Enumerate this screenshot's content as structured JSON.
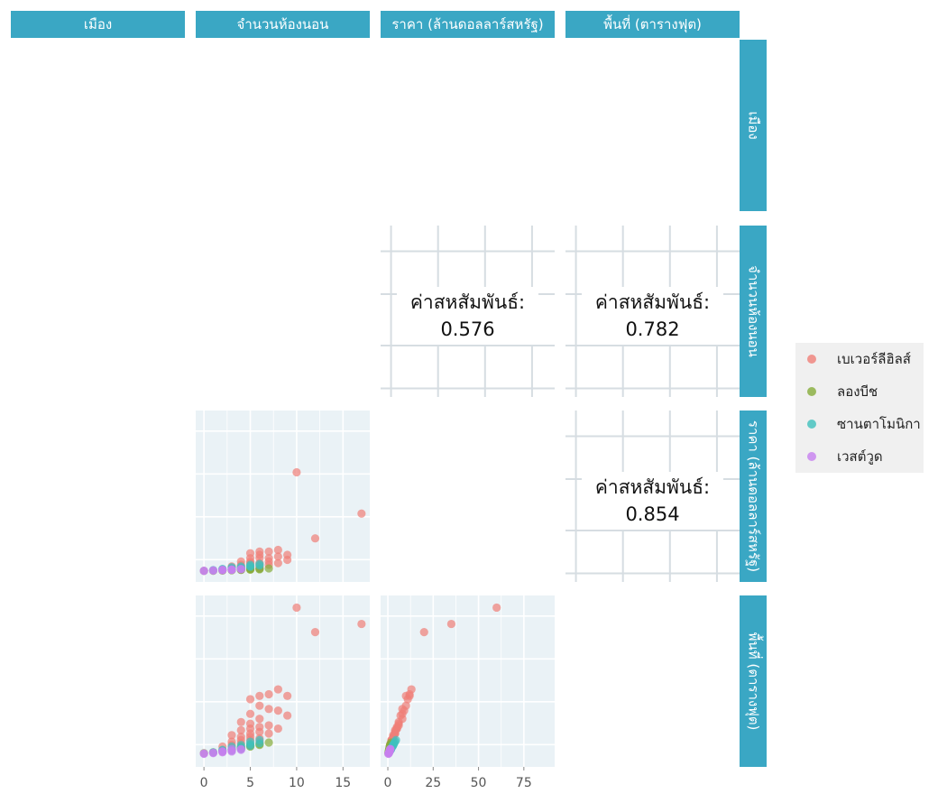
{
  "chart_data": {
    "type": "scatter",
    "variables": [
      "เมือง",
      "จำนวนห้องนอน",
      "ราคา (ล้านดอลลาร์สหรัฐ)",
      "พื้นที่ (ตารางฟุต)"
    ],
    "strip_color": "#3aa7c4",
    "panel_bg": "#eaf2f6",
    "correlation_label": "ค่าสหสัมพันธ์:",
    "correlations": [
      {
        "row": "จำนวนห้องนอน",
        "col": "ราคา (ล้านดอลลาร์สหรัฐ)",
        "value": "0.576"
      },
      {
        "row": "จำนวนห้องนอน",
        "col": "พื้นที่ (ตารางฟุต)",
        "value": "0.782"
      },
      {
        "row": "ราคา (ล้านดอลลาร์สหรัฐ)",
        "col": "พื้นที่ (ตารางฟุต)",
        "value": "0.854"
      }
    ],
    "x_axes": {
      "bedrooms": {
        "ticks": [
          0,
          5,
          10,
          15
        ],
        "range": [
          -0.5,
          17.5
        ]
      },
      "price": {
        "ticks": [
          0,
          25,
          50,
          75
        ],
        "range": [
          -2,
          90
        ]
      }
    },
    "legend": {
      "position": "right"
    },
    "series": [
      {
        "name": "เบเวอร์ลีฮิลส์",
        "color": "#f07f78",
        "points": [
          {
            "bed": 10,
            "price": 60,
            "area": 90
          },
          {
            "bed": 17,
            "price": 35,
            "area": 80
          },
          {
            "bed": 12,
            "price": 20,
            "area": 75
          },
          {
            "bed": 8,
            "price": 13,
            "area": 40
          },
          {
            "bed": 7,
            "price": 12,
            "area": 37
          },
          {
            "bed": 9,
            "price": 10,
            "area": 36
          },
          {
            "bed": 6,
            "price": 12,
            "area": 36
          },
          {
            "bed": 5,
            "price": 11,
            "area": 34
          },
          {
            "bed": 6,
            "price": 10,
            "area": 30
          },
          {
            "bed": 7,
            "price": 8,
            "area": 28
          },
          {
            "bed": 8,
            "price": 9,
            "area": 27
          },
          {
            "bed": 5,
            "price": 8,
            "area": 25
          },
          {
            "bed": 9,
            "price": 7,
            "area": 24
          },
          {
            "bed": 6,
            "price": 8,
            "area": 22
          },
          {
            "bed": 4,
            "price": 6,
            "area": 20
          },
          {
            "bed": 5,
            "price": 6,
            "area": 19
          },
          {
            "bed": 7,
            "price": 6,
            "area": 18
          },
          {
            "bed": 6,
            "price": 5,
            "area": 17
          },
          {
            "bed": 5,
            "price": 5,
            "area": 16
          },
          {
            "bed": 8,
            "price": 5,
            "area": 16
          },
          {
            "bed": 4,
            "price": 4,
            "area": 15
          },
          {
            "bed": 6,
            "price": 4,
            "area": 14
          },
          {
            "bed": 5,
            "price": 4,
            "area": 13
          },
          {
            "bed": 7,
            "price": 4,
            "area": 13
          },
          {
            "bed": 3,
            "price": 3,
            "area": 12
          },
          {
            "bed": 4,
            "price": 3,
            "area": 11
          },
          {
            "bed": 5,
            "price": 3,
            "area": 11
          },
          {
            "bed": 6,
            "price": 3,
            "area": 10
          },
          {
            "bed": 4,
            "price": 2,
            "area": 9
          },
          {
            "bed": 5,
            "price": 2,
            "area": 9
          },
          {
            "bed": 3,
            "price": 2,
            "area": 8
          },
          {
            "bed": 6,
            "price": 2,
            "area": 8
          },
          {
            "bed": 4,
            "price": 1.5,
            "area": 7
          },
          {
            "bed": 5,
            "price": 1.5,
            "area": 6
          },
          {
            "bed": 3,
            "price": 1.2,
            "area": 6
          },
          {
            "bed": 2,
            "price": 1,
            "area": 5
          }
        ]
      },
      {
        "name": "ลองบีช",
        "color": "#86ad3a",
        "points": [
          {
            "bed": 0,
            "price": 0.3,
            "area": 1
          },
          {
            "bed": 1,
            "price": 0.4,
            "area": 1.5
          },
          {
            "bed": 2,
            "price": 0.6,
            "area": 2.5
          },
          {
            "bed": 3,
            "price": 0.8,
            "area": 3.5
          },
          {
            "bed": 4,
            "price": 1,
            "area": 4.5
          },
          {
            "bed": 5,
            "price": 1.2,
            "area": 5.5
          },
          {
            "bed": 6,
            "price": 1.5,
            "area": 6.5
          },
          {
            "bed": 7,
            "price": 1.8,
            "area": 7.5
          },
          {
            "bed": 3,
            "price": 0.7,
            "area": 3
          },
          {
            "bed": 4,
            "price": 0.9,
            "area": 4
          },
          {
            "bed": 5,
            "price": 1.1,
            "area": 5
          },
          {
            "bed": 2,
            "price": 0.5,
            "area": 2
          },
          {
            "bed": 6,
            "price": 1.3,
            "area": 6
          },
          {
            "bed": 4,
            "price": 1.1,
            "area": 5
          },
          {
            "bed": 5,
            "price": 1.6,
            "area": 6
          }
        ]
      },
      {
        "name": "ซานตาโมนิกา",
        "color": "#3fc1bd",
        "points": [
          {
            "bed": 1,
            "price": 0.8,
            "area": 1.5
          },
          {
            "bed": 2,
            "price": 1.2,
            "area": 2.5
          },
          {
            "bed": 3,
            "price": 1.8,
            "area": 3.5
          },
          {
            "bed": 4,
            "price": 2.2,
            "area": 4.5
          },
          {
            "bed": 5,
            "price": 2.8,
            "area": 5.5
          },
          {
            "bed": 6,
            "price": 3.5,
            "area": 7
          },
          {
            "bed": 3,
            "price": 2.5,
            "area": 5
          },
          {
            "bed": 4,
            "price": 3,
            "area": 6
          },
          {
            "bed": 5,
            "price": 4,
            "area": 8
          },
          {
            "bed": 6,
            "price": 4.5,
            "area": 9
          },
          {
            "bed": 2,
            "price": 1.5,
            "area": 3
          },
          {
            "bed": 4,
            "price": 1.8,
            "area": 3.5
          },
          {
            "bed": 5,
            "price": 3.2,
            "area": 6.5
          },
          {
            "bed": 3,
            "price": 1.2,
            "area": 2.5
          }
        ]
      },
      {
        "name": "เวสต์วูด",
        "color": "#c77ff0",
        "points": [
          {
            "bed": 0,
            "price": 0.4,
            "area": 0.8
          },
          {
            "bed": 1,
            "price": 0.6,
            "area": 1.2
          },
          {
            "bed": 2,
            "price": 0.8,
            "area": 1.8
          },
          {
            "bed": 3,
            "price": 1,
            "area": 2.5
          },
          {
            "bed": 4,
            "price": 1.3,
            "area": 3
          },
          {
            "bed": 2,
            "price": 1,
            "area": 2.2
          },
          {
            "bed": 3,
            "price": 1.2,
            "area": 3.5
          },
          {
            "bed": 1,
            "price": 0.5,
            "area": 1
          },
          {
            "bed": 0,
            "price": 0.3,
            "area": 0.6
          },
          {
            "bed": 2,
            "price": 0.7,
            "area": 1.5
          },
          {
            "bed": 3,
            "price": 0.9,
            "area": 2
          },
          {
            "bed": 4,
            "price": 1.5,
            "area": 3.5
          }
        ]
      }
    ]
  }
}
